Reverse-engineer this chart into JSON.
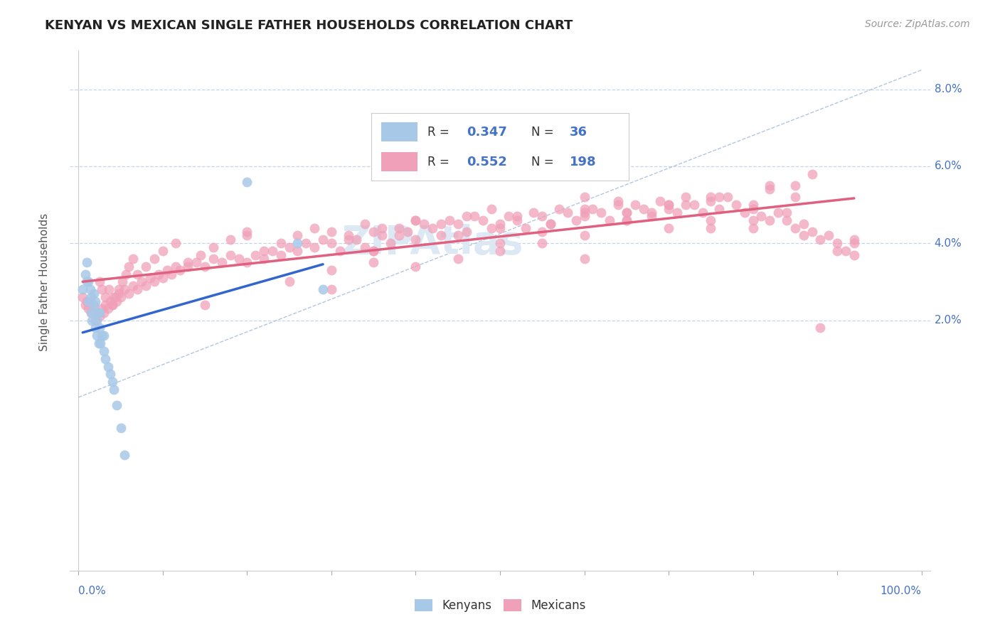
{
  "title": "KENYAN VS MEXICAN SINGLE FATHER HOUSEHOLDS CORRELATION CHART",
  "source": "Source: ZipAtlas.com",
  "ylabel": "Single Father Households",
  "kenyan_R": "0.347",
  "kenyan_N": "36",
  "mexican_R": "0.552",
  "mexican_N": "198",
  "kenyan_color": "#a8c8e8",
  "mexican_color": "#f0a0b8",
  "kenyan_line_color": "#3366cc",
  "mexican_line_color": "#e06080",
  "diag_color": "#a0b8d8",
  "background_color": "#ffffff",
  "grid_color": "#c8d4e8",
  "label_color": "#4472c4",
  "text_color": "#333333",
  "watermark_color": "#dce8f4",
  "xlim": [
    -0.01,
    1.01
  ],
  "ylim": [
    -0.045,
    0.09
  ],
  "yticks": [
    0.02,
    0.04,
    0.06,
    0.08
  ],
  "ytick_labels": [
    "2.0%",
    "4.0%",
    "6.0%",
    "8.0%"
  ],
  "kenyan_x": [
    0.005,
    0.008,
    0.01,
    0.01,
    0.012,
    0.012,
    0.014,
    0.015,
    0.015,
    0.016,
    0.018,
    0.018,
    0.02,
    0.02,
    0.02,
    0.022,
    0.022,
    0.023,
    0.024,
    0.025,
    0.025,
    0.026,
    0.028,
    0.03,
    0.03,
    0.032,
    0.035,
    0.038,
    0.04,
    0.042,
    0.045,
    0.05,
    0.055,
    0.2,
    0.26,
    0.29
  ],
  "kenyan_y": [
    0.028,
    0.032,
    0.03,
    0.035,
    0.025,
    0.03,
    0.028,
    0.022,
    0.026,
    0.02,
    0.024,
    0.027,
    0.018,
    0.022,
    0.025,
    0.016,
    0.02,
    0.022,
    0.014,
    0.018,
    0.022,
    0.014,
    0.016,
    0.012,
    0.016,
    0.01,
    0.008,
    0.006,
    0.004,
    0.002,
    -0.002,
    -0.008,
    -0.015,
    0.056,
    0.04,
    0.028
  ],
  "mexican_x": [
    0.005,
    0.008,
    0.01,
    0.012,
    0.015,
    0.018,
    0.02,
    0.022,
    0.025,
    0.028,
    0.03,
    0.032,
    0.035,
    0.038,
    0.04,
    0.042,
    0.045,
    0.048,
    0.05,
    0.055,
    0.06,
    0.065,
    0.07,
    0.075,
    0.08,
    0.085,
    0.09,
    0.095,
    0.1,
    0.105,
    0.11,
    0.115,
    0.12,
    0.13,
    0.14,
    0.15,
    0.16,
    0.17,
    0.18,
    0.19,
    0.2,
    0.21,
    0.22,
    0.23,
    0.24,
    0.25,
    0.26,
    0.27,
    0.28,
    0.29,
    0.3,
    0.31,
    0.32,
    0.33,
    0.34,
    0.35,
    0.36,
    0.37,
    0.38,
    0.39,
    0.4,
    0.41,
    0.42,
    0.43,
    0.44,
    0.45,
    0.46,
    0.47,
    0.48,
    0.49,
    0.5,
    0.51,
    0.52,
    0.53,
    0.54,
    0.55,
    0.56,
    0.57,
    0.58,
    0.59,
    0.6,
    0.61,
    0.62,
    0.63,
    0.64,
    0.65,
    0.66,
    0.67,
    0.68,
    0.69,
    0.7,
    0.71,
    0.72,
    0.73,
    0.74,
    0.75,
    0.76,
    0.77,
    0.78,
    0.79,
    0.8,
    0.81,
    0.82,
    0.83,
    0.84,
    0.85,
    0.86,
    0.87,
    0.88,
    0.89,
    0.9,
    0.91,
    0.92,
    0.025,
    0.028,
    0.032,
    0.036,
    0.04,
    0.044,
    0.048,
    0.052,
    0.056,
    0.06,
    0.065,
    0.07,
    0.08,
    0.09,
    0.1,
    0.115,
    0.13,
    0.145,
    0.16,
    0.18,
    0.2,
    0.22,
    0.24,
    0.26,
    0.28,
    0.3,
    0.32,
    0.34,
    0.36,
    0.38,
    0.4,
    0.43,
    0.46,
    0.49,
    0.52,
    0.56,
    0.6,
    0.64,
    0.68,
    0.72,
    0.76,
    0.8,
    0.84,
    0.88,
    0.2,
    0.35,
    0.5,
    0.65,
    0.75,
    0.82,
    0.87,
    0.35,
    0.5,
    0.65,
    0.82,
    0.9,
    0.4,
    0.6,
    0.7,
    0.8,
    0.55,
    0.7,
    0.85,
    0.45,
    0.6,
    0.75,
    0.3,
    0.5,
    0.7,
    0.86,
    0.25,
    0.45,
    0.65,
    0.85,
    0.3,
    0.55,
    0.75,
    0.92,
    0.15,
    0.4,
    0.6,
    0.8,
    0.92,
    0.35,
    0.6
  ],
  "mexican_y": [
    0.026,
    0.024,
    0.025,
    0.023,
    0.022,
    0.024,
    0.02,
    0.022,
    0.021,
    0.023,
    0.022,
    0.024,
    0.023,
    0.025,
    0.024,
    0.026,
    0.025,
    0.027,
    0.026,
    0.028,
    0.027,
    0.029,
    0.028,
    0.03,
    0.029,
    0.031,
    0.03,
    0.032,
    0.031,
    0.033,
    0.032,
    0.034,
    0.033,
    0.034,
    0.035,
    0.034,
    0.036,
    0.035,
    0.037,
    0.036,
    0.035,
    0.037,
    0.036,
    0.038,
    0.037,
    0.039,
    0.038,
    0.04,
    0.039,
    0.041,
    0.04,
    0.038,
    0.042,
    0.041,
    0.039,
    0.043,
    0.042,
    0.04,
    0.044,
    0.043,
    0.041,
    0.045,
    0.044,
    0.042,
    0.046,
    0.045,
    0.043,
    0.047,
    0.046,
    0.044,
    0.045,
    0.047,
    0.046,
    0.044,
    0.048,
    0.047,
    0.045,
    0.049,
    0.048,
    0.046,
    0.047,
    0.049,
    0.048,
    0.046,
    0.05,
    0.048,
    0.05,
    0.049,
    0.047,
    0.051,
    0.05,
    0.048,
    0.052,
    0.05,
    0.048,
    0.051,
    0.049,
    0.052,
    0.05,
    0.048,
    0.049,
    0.047,
    0.046,
    0.048,
    0.046,
    0.044,
    0.045,
    0.043,
    0.041,
    0.042,
    0.04,
    0.038,
    0.037,
    0.03,
    0.028,
    0.026,
    0.028,
    0.024,
    0.026,
    0.028,
    0.03,
    0.032,
    0.034,
    0.036,
    0.032,
    0.034,
    0.036,
    0.038,
    0.04,
    0.035,
    0.037,
    0.039,
    0.041,
    0.043,
    0.038,
    0.04,
    0.042,
    0.044,
    0.043,
    0.041,
    0.045,
    0.044,
    0.042,
    0.046,
    0.045,
    0.047,
    0.049,
    0.047,
    0.045,
    0.049,
    0.051,
    0.048,
    0.05,
    0.052,
    0.05,
    0.048,
    0.018,
    0.042,
    0.038,
    0.044,
    0.046,
    0.052,
    0.055,
    0.058,
    0.035,
    0.04,
    0.048,
    0.054,
    0.038,
    0.046,
    0.052,
    0.05,
    0.044,
    0.043,
    0.049,
    0.055,
    0.042,
    0.048,
    0.046,
    0.033,
    0.038,
    0.044,
    0.042,
    0.03,
    0.036,
    0.046,
    0.052,
    0.028,
    0.04,
    0.044,
    0.04,
    0.024,
    0.034,
    0.042,
    0.046,
    0.041,
    0.038,
    0.036
  ]
}
